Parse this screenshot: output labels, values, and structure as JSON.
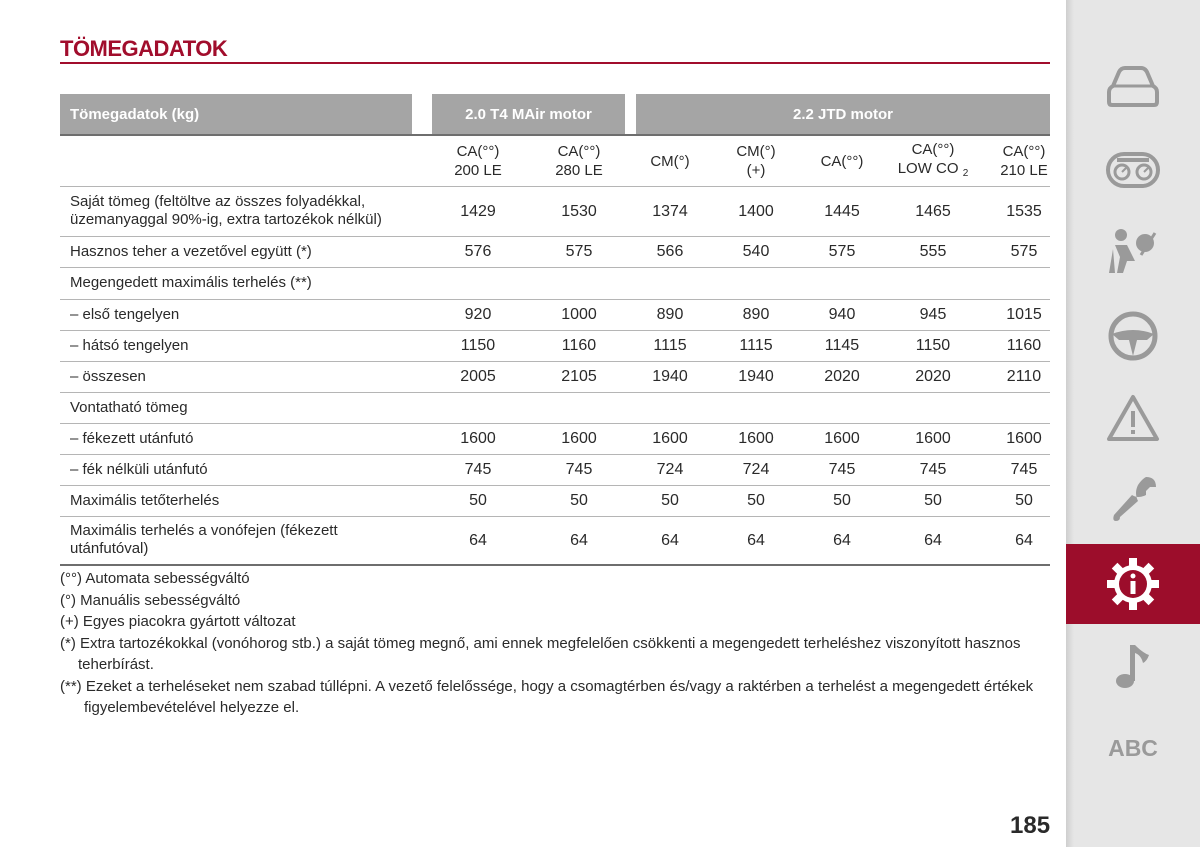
{
  "page": {
    "title": "TÖMEGADATOK",
    "number": "185"
  },
  "table": {
    "header": {
      "label": "Tömegadatok (kg)",
      "group1": "2.0 T4 MAir motor",
      "group2": "2.2 JTD motor"
    },
    "subheaders": [
      [
        "CA(°°)",
        "200 LE"
      ],
      [
        "CA(°°)",
        "280 LE"
      ],
      [
        "CM(°)"
      ],
      [
        "CM(°)",
        "(+)"
      ],
      [
        "CA(°°)"
      ],
      [
        "CA(°°)",
        "LOW CO",
        "2"
      ],
      [
        "CA(°°)",
        "210 LE"
      ]
    ],
    "rows": [
      {
        "label": "Saját tömeg (feltöltve az összes folyadékkal, üzemanyaggal 90%-ig, extra tartozékok nélkül)",
        "values": [
          "1429",
          "1530",
          "1374",
          "1400",
          "1445",
          "1465",
          "1535"
        ]
      },
      {
        "label": "Hasznos teher a vezetővel együtt (*)",
        "values": [
          "576",
          "575",
          "566",
          "540",
          "575",
          "555",
          "575"
        ]
      },
      {
        "label": "Megengedett maximális terhelés (**)",
        "values": [
          "",
          "",
          "",
          "",
          "",
          "",
          ""
        ]
      },
      {
        "label": "– első tengelyen",
        "values": [
          "920",
          "1000",
          "890",
          "890",
          "940",
          "945",
          "1015"
        ]
      },
      {
        "label": "– hátsó tengelyen",
        "values": [
          "1150",
          "1160",
          "1115",
          "1115",
          "1145",
          "1150",
          "1160"
        ]
      },
      {
        "label": "– összesen",
        "values": [
          "2005",
          "2105",
          "1940",
          "1940",
          "2020",
          "2020",
          "2110"
        ]
      },
      {
        "label": "Vontatható tömeg",
        "values": [
          "",
          "",
          "",
          "",
          "",
          "",
          ""
        ]
      },
      {
        "label": "– fékezett utánfutó",
        "values": [
          "1600",
          "1600",
          "1600",
          "1600",
          "1600",
          "1600",
          "1600"
        ]
      },
      {
        "label": "– fék nélküli utánfutó",
        "values": [
          "745",
          "745",
          "724",
          "724",
          "745",
          "745",
          "745"
        ]
      },
      {
        "label": "Maximális tetőterhelés",
        "values": [
          "50",
          "50",
          "50",
          "50",
          "50",
          "50",
          "50"
        ]
      },
      {
        "label": "Maximális terhelés a vonófejen (fékezett utánfutóval)",
        "values": [
          "64",
          "64",
          "64",
          "64",
          "64",
          "64",
          "64"
        ]
      }
    ]
  },
  "notes": [
    "(°°) Automata sebességváltó",
    "(°) Manuális sebességváltó",
    "(+) Egyes piacokra gyártott változat",
    "(*) Extra tartozékokkal (vonóhorog stb.) a saját tömeg megnő, ami ennek megfelelően csökkenti a megengedett terheléshez viszonyított hasznos teherbírást.",
    "(**) Ezeket a terheléseket nem szabad túllépni. A vezető felelőssége, hogy a csomagtérben és/vagy a raktérben a terhelést a megengedett értékek figyelembevételével helyezze el."
  ],
  "sidebar": {
    "items": [
      {
        "icon": "car-icon"
      },
      {
        "icon": "dashboard-icon"
      },
      {
        "icon": "airbag-person-icon"
      },
      {
        "icon": "steering-wheel-icon"
      },
      {
        "icon": "warning-triangle-icon"
      },
      {
        "icon": "wrench-icon"
      },
      {
        "icon": "info-gear-icon",
        "active": true
      },
      {
        "icon": "music-note-icon"
      },
      {
        "icon": "abc-index",
        "label": "ABC"
      }
    ],
    "colors": {
      "background": "#e6e6e6",
      "active": "#9c0d2b",
      "icon": "#9a9a9a"
    }
  },
  "colors": {
    "accent": "#a10d2c",
    "header": "#a5a5a5"
  }
}
